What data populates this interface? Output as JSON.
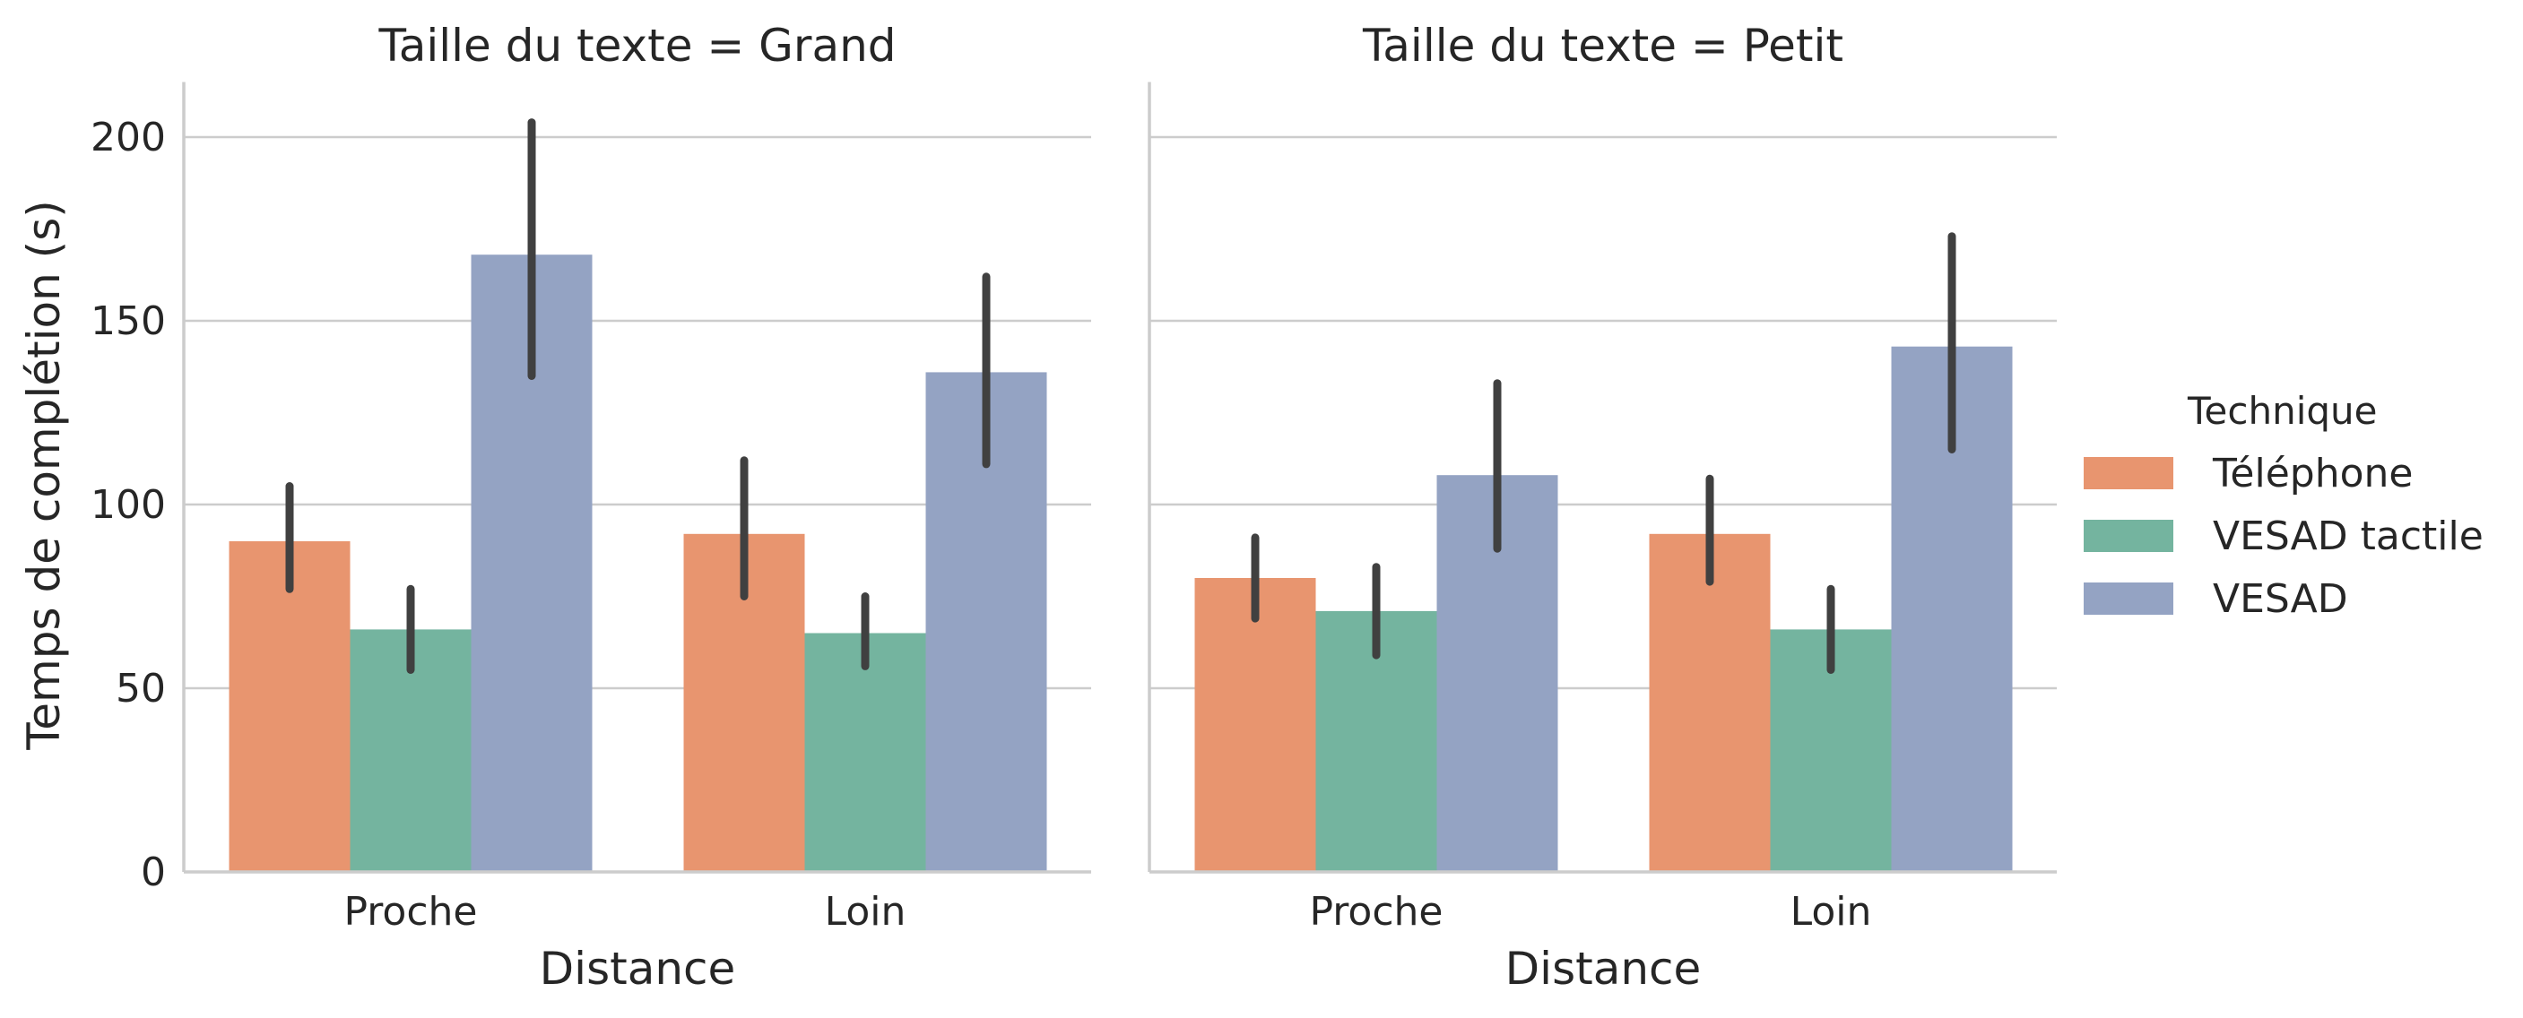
{
  "chart_data": {
    "type": "bar",
    "facet_titles": [
      "Taille du texte = Grand",
      "Taille du texte = Petit"
    ],
    "categories": [
      "Proche",
      "Loin"
    ],
    "xlabel": "Distance",
    "ylabel": "Temps de complétion (s)",
    "ylim": [
      0,
      215
    ],
    "yticks": [
      0,
      50,
      100,
      150,
      200
    ],
    "grid": "horizontal",
    "legend": {
      "title": "Technique",
      "placement": "right",
      "entries": [
        "Téléphone",
        "VESAD tactile",
        "VESAD"
      ]
    },
    "colors": [
      "#e8956f",
      "#74b49f",
      "#94a3c3"
    ],
    "panels": [
      {
        "title": "Taille du texte = Grand",
        "series": [
          {
            "name": "Téléphone",
            "values": [
              90,
              92
            ],
            "ci_low": [
              77,
              75
            ],
            "ci_high": [
              105,
              112
            ]
          },
          {
            "name": "VESAD tactile",
            "values": [
              66,
              65
            ],
            "ci_low": [
              55,
              56
            ],
            "ci_high": [
              77,
              75
            ]
          },
          {
            "name": "VESAD",
            "values": [
              168,
              136
            ],
            "ci_low": [
              135,
              111
            ],
            "ci_high": [
              204,
              162
            ]
          }
        ]
      },
      {
        "title": "Taille du texte = Petit",
        "series": [
          {
            "name": "Téléphone",
            "values": [
              80,
              92
            ],
            "ci_low": [
              69,
              79
            ],
            "ci_high": [
              91,
              107
            ]
          },
          {
            "name": "VESAD tactile",
            "values": [
              71,
              66
            ],
            "ci_low": [
              59,
              55
            ],
            "ci_high": [
              83,
              77
            ]
          },
          {
            "name": "VESAD",
            "values": [
              108,
              143
            ],
            "ci_low": [
              88,
              115
            ],
            "ci_high": [
              133,
              173
            ]
          }
        ]
      }
    ]
  }
}
